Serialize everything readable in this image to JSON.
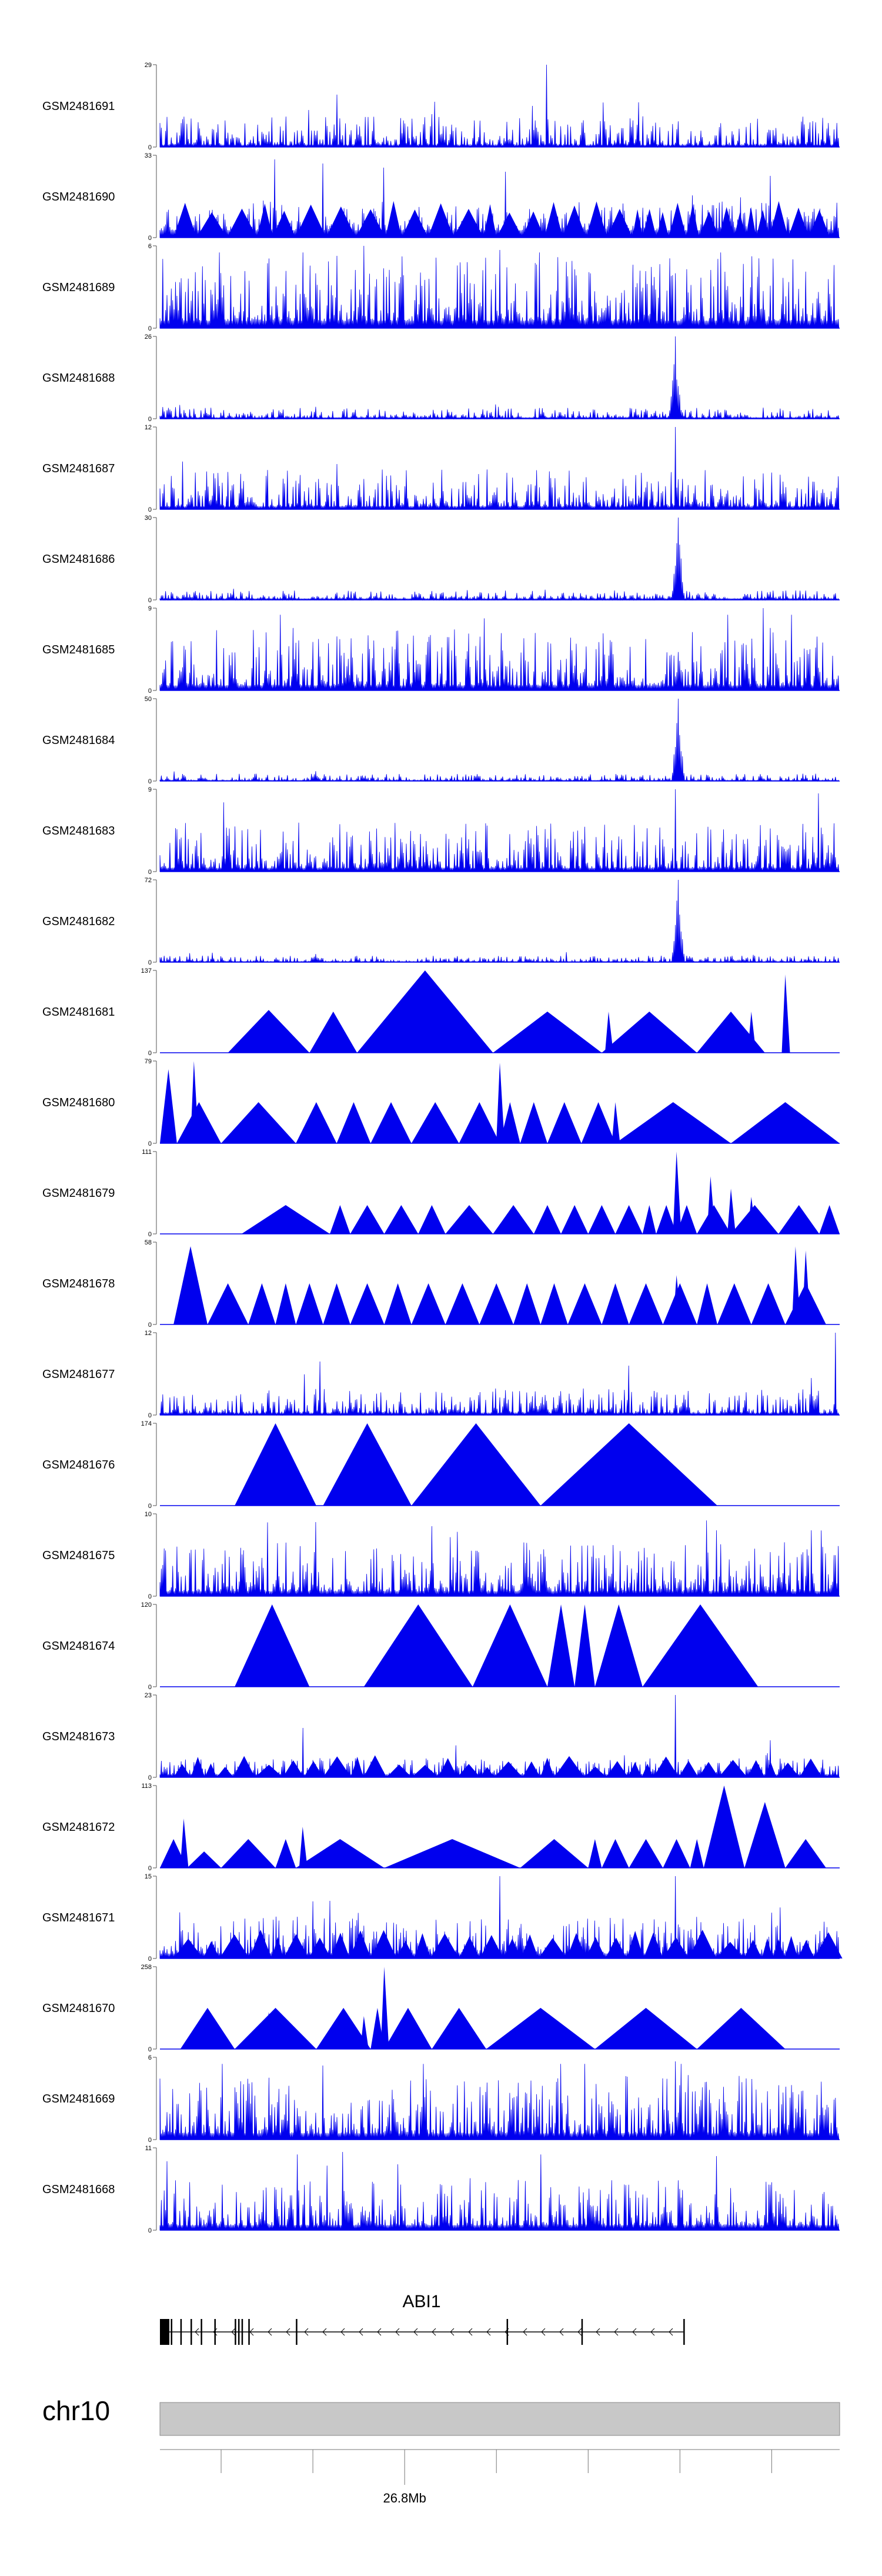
{
  "chart_data": {
    "type": "area",
    "series_color": "#0000ee",
    "x_range": [
      0,
      1
    ],
    "tracks": [
      {
        "name": "GSM2481691",
        "ymax": "29",
        "ymin": "0",
        "style": "noise",
        "base": 0.08,
        "noise": 0.35,
        "spikes": [
          [
            0.22,
            0.45
          ],
          [
            0.4,
            0.4
          ],
          [
            0.405,
            0.55
          ],
          [
            0.55,
            0.5
          ],
          [
            0.57,
            1.0
          ],
          [
            0.53,
            0.35
          ]
        ],
        "seed": 11
      },
      {
        "name": "GSM2481690",
        "ymax": "33",
        "ymin": "0",
        "style": "tri",
        "base": 0.3,
        "noise": 0.35,
        "spikes": [
          [
            0.17,
            0.95
          ],
          [
            0.24,
            0.9
          ],
          [
            0.33,
            0.85
          ],
          [
            0.51,
            0.8
          ],
          [
            0.9,
            0.75
          ]
        ],
        "seed": 12
      },
      {
        "name": "GSM2481689",
        "ymax": "6",
        "ymin": "0",
        "style": "noise",
        "base": 0.3,
        "noise": 0.8,
        "spikes": [
          [
            0.3,
            1.0
          ],
          [
            0.5,
            0.95
          ]
        ],
        "seed": 13
      },
      {
        "name": "GSM2481688",
        "ymax": "26",
        "ymin": "0",
        "style": "peak",
        "base": 0.05,
        "noise": 0.12,
        "spikes": [
          [
            0.76,
            1.0
          ]
        ],
        "seed": 14
      },
      {
        "name": "GSM2481687",
        "ymax": "12",
        "ymin": "0",
        "style": "noise",
        "base": 0.12,
        "noise": 0.45,
        "spikes": [
          [
            0.76,
            1.0
          ],
          [
            0.26,
            0.55
          ]
        ],
        "seed": 15
      },
      {
        "name": "GSM2481686",
        "ymax": "30",
        "ymin": "0",
        "style": "peak",
        "base": 0.05,
        "noise": 0.1,
        "spikes": [
          [
            0.765,
            1.0
          ]
        ],
        "seed": 16
      },
      {
        "name": "GSM2481685",
        "ymax": "9",
        "ymin": "0",
        "style": "noise",
        "base": 0.2,
        "noise": 0.7,
        "spikes": [
          [
            0.89,
            1.0
          ]
        ],
        "seed": 17
      },
      {
        "name": "GSM2481684",
        "ymax": "50",
        "ymin": "0",
        "style": "peak",
        "base": 0.03,
        "noise": 0.08,
        "spikes": [
          [
            0.765,
            1.0
          ],
          [
            0.23,
            0.12
          ]
        ],
        "seed": 18
      },
      {
        "name": "GSM2481683",
        "ymax": "9",
        "ymin": "0",
        "style": "noise",
        "base": 0.15,
        "noise": 0.55,
        "spikes": [
          [
            0.76,
            1.0
          ],
          [
            0.97,
            0.95
          ]
        ],
        "seed": 19
      },
      {
        "name": "GSM2481682",
        "ymax": "72",
        "ymin": "0",
        "style": "peak",
        "base": 0.03,
        "noise": 0.07,
        "spikes": [
          [
            0.765,
            1.0
          ],
          [
            0.23,
            0.1
          ]
        ],
        "seed": 20
      },
      {
        "name": "GSM2481681",
        "ymax": "137",
        "ymin": "0",
        "style": "manual",
        "tris": [
          [
            0.1,
            0.22,
            0.52
          ],
          [
            0.22,
            0.29,
            0.5
          ],
          [
            0.29,
            0.49,
            1.0
          ],
          [
            0.49,
            0.65,
            0.5
          ],
          [
            0.65,
            0.79,
            0.5
          ],
          [
            0.79,
            0.89,
            0.5
          ]
        ],
        "spikes": [
          [
            0.92,
            0.95
          ],
          [
            0.66,
            0.5
          ],
          [
            0.87,
            0.5
          ]
        ],
        "seed": 21
      },
      {
        "name": "GSM2481680",
        "ymax": "79",
        "ymin": "0",
        "style": "manual",
        "tris": [
          [
            0.0,
            0.025,
            0.9
          ],
          [
            0.025,
            0.09,
            0.5
          ],
          [
            0.09,
            0.2,
            0.5
          ],
          [
            0.2,
            0.26,
            0.5
          ],
          [
            0.26,
            0.31,
            0.5
          ],
          [
            0.31,
            0.37,
            0.5
          ],
          [
            0.37,
            0.44,
            0.5
          ],
          [
            0.44,
            0.5,
            0.5
          ],
          [
            0.5,
            0.53,
            0.5
          ],
          [
            0.53,
            0.57,
            0.5
          ],
          [
            0.57,
            0.62,
            0.5
          ],
          [
            0.62,
            0.67,
            0.5
          ],
          [
            0.67,
            0.84,
            0.5
          ],
          [
            0.84,
            1.0,
            0.5
          ]
        ],
        "spikes": [
          [
            0.05,
            1.0
          ],
          [
            0.5,
            0.98
          ],
          [
            0.67,
            0.5
          ]
        ],
        "seed": 22
      },
      {
        "name": "GSM2481679",
        "ymax": "111",
        "ymin": "0",
        "style": "manual",
        "tris": [
          [
            0.12,
            0.25,
            0.35
          ],
          [
            0.25,
            0.28,
            0.35
          ],
          [
            0.28,
            0.33,
            0.35
          ],
          [
            0.33,
            0.38,
            0.35
          ],
          [
            0.38,
            0.42,
            0.35
          ],
          [
            0.42,
            0.49,
            0.35
          ],
          [
            0.49,
            0.55,
            0.35
          ],
          [
            0.55,
            0.59,
            0.35
          ],
          [
            0.59,
            0.63,
            0.35
          ],
          [
            0.63,
            0.67,
            0.35
          ],
          [
            0.67,
            0.71,
            0.35
          ],
          [
            0.71,
            0.73,
            0.35
          ],
          [
            0.73,
            0.76,
            0.35
          ],
          [
            0.76,
            0.79,
            0.35
          ],
          [
            0.79,
            0.84,
            0.35
          ],
          [
            0.84,
            0.91,
            0.35
          ],
          [
            0.91,
            0.97,
            0.35
          ],
          [
            0.97,
            1.0,
            0.35
          ]
        ],
        "spikes": [
          [
            0.76,
            1.0
          ],
          [
            0.81,
            0.7
          ],
          [
            0.84,
            0.55
          ],
          [
            0.87,
            0.45
          ]
        ],
        "seed": 23
      },
      {
        "name": "GSM2481678",
        "ymax": "58",
        "ymin": "0",
        "style": "manual",
        "tris": [
          [
            0.02,
            0.07,
            0.95
          ],
          [
            0.07,
            0.13,
            0.5
          ],
          [
            0.13,
            0.17,
            0.5
          ],
          [
            0.17,
            0.2,
            0.5
          ],
          [
            0.2,
            0.24,
            0.5
          ],
          [
            0.24,
            0.28,
            0.5
          ],
          [
            0.28,
            0.33,
            0.5
          ],
          [
            0.33,
            0.37,
            0.5
          ],
          [
            0.37,
            0.42,
            0.5
          ],
          [
            0.42,
            0.47,
            0.5
          ],
          [
            0.47,
            0.52,
            0.5
          ],
          [
            0.52,
            0.56,
            0.5
          ],
          [
            0.56,
            0.6,
            0.5
          ],
          [
            0.6,
            0.65,
            0.5
          ],
          [
            0.65,
            0.69,
            0.5
          ],
          [
            0.69,
            0.74,
            0.5
          ],
          [
            0.74,
            0.79,
            0.5
          ],
          [
            0.79,
            0.82,
            0.5
          ],
          [
            0.82,
            0.87,
            0.5
          ],
          [
            0.87,
            0.92,
            0.5
          ],
          [
            0.92,
            0.98,
            0.5
          ]
        ],
        "spikes": [
          [
            0.935,
            0.95
          ],
          [
            0.95,
            0.9
          ],
          [
            0.76,
            0.6
          ]
        ],
        "seed": 24
      },
      {
        "name": "GSM2481677",
        "ymax": "12",
        "ymin": "0",
        "style": "noise",
        "base": 0.08,
        "noise": 0.3,
        "spikes": [
          [
            0.235,
            0.65
          ],
          [
            0.69,
            0.6
          ],
          [
            0.96,
            0.45
          ],
          [
            0.995,
            1.0
          ]
        ],
        "seed": 25
      },
      {
        "name": "GSM2481676",
        "ymax": "174",
        "ymin": "0",
        "style": "manual",
        "tris": [
          [
            0.11,
            0.23,
            1.0
          ],
          [
            0.24,
            0.37,
            1.0
          ],
          [
            0.37,
            0.56,
            1.0
          ],
          [
            0.56,
            0.82,
            1.0
          ]
        ],
        "spikes": [],
        "seed": 26
      },
      {
        "name": "GSM2481675",
        "ymax": "10",
        "ymin": "0",
        "style": "noise",
        "base": 0.2,
        "noise": 0.6,
        "spikes": [
          [
            0.23,
            0.9
          ],
          [
            0.4,
            0.85
          ],
          [
            0.82,
            0.8
          ],
          [
            0.96,
            0.8
          ]
        ],
        "seed": 27
      },
      {
        "name": "GSM2481674",
        "ymax": "120",
        "ymin": "0",
        "style": "manual",
        "tris": [
          [
            0.11,
            0.22,
            1.0
          ],
          [
            0.3,
            0.46,
            1.0
          ],
          [
            0.46,
            0.57,
            1.0
          ],
          [
            0.57,
            0.61,
            1.0
          ],
          [
            0.61,
            0.64,
            1.0
          ],
          [
            0.64,
            0.71,
            1.0
          ],
          [
            0.71,
            0.88,
            1.0
          ]
        ],
        "spikes": [],
        "seed": 28
      },
      {
        "name": "GSM2481673",
        "ymax": "23",
        "ymin": "0",
        "style": "tri",
        "base": 0.12,
        "noise": 0.2,
        "spikes": [
          [
            0.21,
            0.6
          ],
          [
            0.76,
            1.0
          ],
          [
            0.9,
            0.45
          ]
        ],
        "seed": 29
      },
      {
        "name": "GSM2481672",
        "ymax": "113",
        "ymin": "0",
        "style": "manual",
        "tris": [
          [
            0.0,
            0.04,
            0.35
          ],
          [
            0.04,
            0.09,
            0.2
          ],
          [
            0.09,
            0.17,
            0.35
          ],
          [
            0.17,
            0.2,
            0.35
          ],
          [
            0.2,
            0.33,
            0.35
          ],
          [
            0.33,
            0.53,
            0.35
          ],
          [
            0.53,
            0.63,
            0.35
          ],
          [
            0.63,
            0.65,
            0.35
          ],
          [
            0.65,
            0.69,
            0.35
          ],
          [
            0.69,
            0.74,
            0.35
          ],
          [
            0.74,
            0.78,
            0.35
          ],
          [
            0.78,
            0.8,
            0.35
          ],
          [
            0.8,
            0.86,
            1.0
          ],
          [
            0.86,
            0.92,
            0.8
          ],
          [
            0.92,
            0.98,
            0.35
          ]
        ],
        "spikes": [
          [
            0.035,
            0.6
          ],
          [
            0.21,
            0.5
          ]
        ],
        "seed": 30
      },
      {
        "name": "GSM2481671",
        "ymax": "15",
        "ymin": "0",
        "style": "tri",
        "base": 0.2,
        "noise": 0.45,
        "spikes": [
          [
            0.5,
            1.0
          ],
          [
            0.76,
            1.0
          ],
          [
            0.25,
            0.7
          ]
        ],
        "seed": 31
      },
      {
        "name": "GSM2481670",
        "ymax": "258",
        "ymin": "0",
        "style": "manual",
        "tris": [
          [
            0.03,
            0.11,
            0.5
          ],
          [
            0.11,
            0.23,
            0.5
          ],
          [
            0.23,
            0.31,
            0.5
          ],
          [
            0.31,
            0.33,
            0.5
          ],
          [
            0.33,
            0.4,
            0.5
          ],
          [
            0.4,
            0.48,
            0.5
          ],
          [
            0.48,
            0.64,
            0.5
          ],
          [
            0.64,
            0.79,
            0.5
          ],
          [
            0.79,
            0.92,
            0.5
          ]
        ],
        "spikes": [
          [
            0.33,
            1.0
          ],
          [
            0.16,
            0.45
          ],
          [
            0.3,
            0.4
          ]
        ],
        "seed": 32
      },
      {
        "name": "GSM2481669",
        "ymax": "6",
        "ymin": "0",
        "style": "noise",
        "base": 0.25,
        "noise": 0.7,
        "spikes": [
          [
            0.24,
            0.9
          ],
          [
            0.76,
            0.95
          ]
        ],
        "seed": 33
      },
      {
        "name": "GSM2481668",
        "ymax": "11",
        "ymin": "0",
        "style": "noise",
        "base": 0.2,
        "noise": 0.55,
        "spikes": [
          [
            0.27,
            0.95
          ],
          [
            0.82,
            0.9
          ],
          [
            0.35,
            0.8
          ]
        ],
        "seed": 34
      }
    ],
    "gene": {
      "name": "ABI1",
      "strand": "-",
      "exons": [
        0.0,
        0.01,
        0.016,
        0.03,
        0.045,
        0.06,
        0.08,
        0.11,
        0.115,
        0.12,
        0.13,
        0.2,
        0.51,
        0.62,
        0.77
      ],
      "span": [
        0.0,
        0.77
      ]
    },
    "chromosome": "chr10",
    "position_label": "26.8Mb",
    "position_label_x": 0.36,
    "ticks": [
      0.09,
      0.225,
      0.36,
      0.495,
      0.63,
      0.765,
      0.9
    ]
  }
}
